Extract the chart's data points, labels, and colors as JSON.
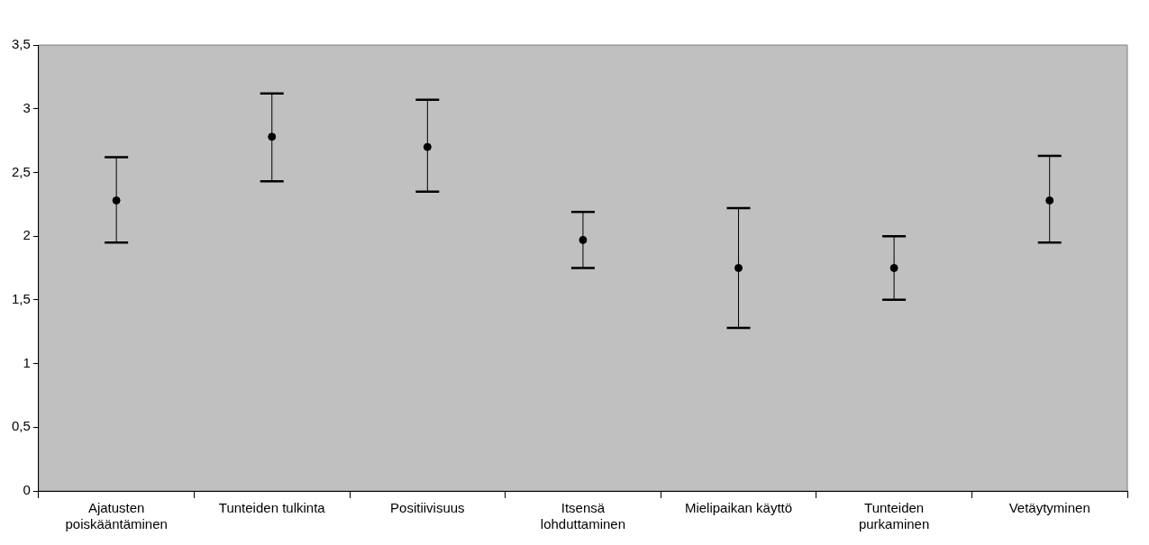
{
  "chart_data": {
    "type": "scatter",
    "categories": [
      "Ajatusten poiskääntäminen",
      "Tunteiden tulkinta",
      "Positiivisuus",
      "Itsensä lohduttaminen",
      "Mielipaikan käyttö",
      "Tunteiden purkaminen",
      "Vetäytyminen"
    ],
    "values": [
      2.28,
      2.78,
      2.7,
      1.97,
      1.75,
      1.75,
      2.28
    ],
    "errors": [
      [
        1.95,
        2.62
      ],
      [
        2.43,
        3.12
      ],
      [
        2.35,
        3.07
      ],
      [
        1.75,
        2.19
      ],
      [
        1.28,
        2.22
      ],
      [
        1.5,
        2.0
      ],
      [
        1.95,
        2.63
      ]
    ],
    "color": "#000000",
    "marker": "circle",
    "ylim": [
      0,
      3.5
    ],
    "yticks": [
      0,
      {
        "value": 0.5,
        "label": "0,5"
      },
      1,
      {
        "value": 1.5,
        "label": "1,5"
      },
      2,
      {
        "value": 2.5,
        "label": "2,5"
      },
      3,
      {
        "value": 3.5,
        "label": "3,5"
      }
    ]
  }
}
